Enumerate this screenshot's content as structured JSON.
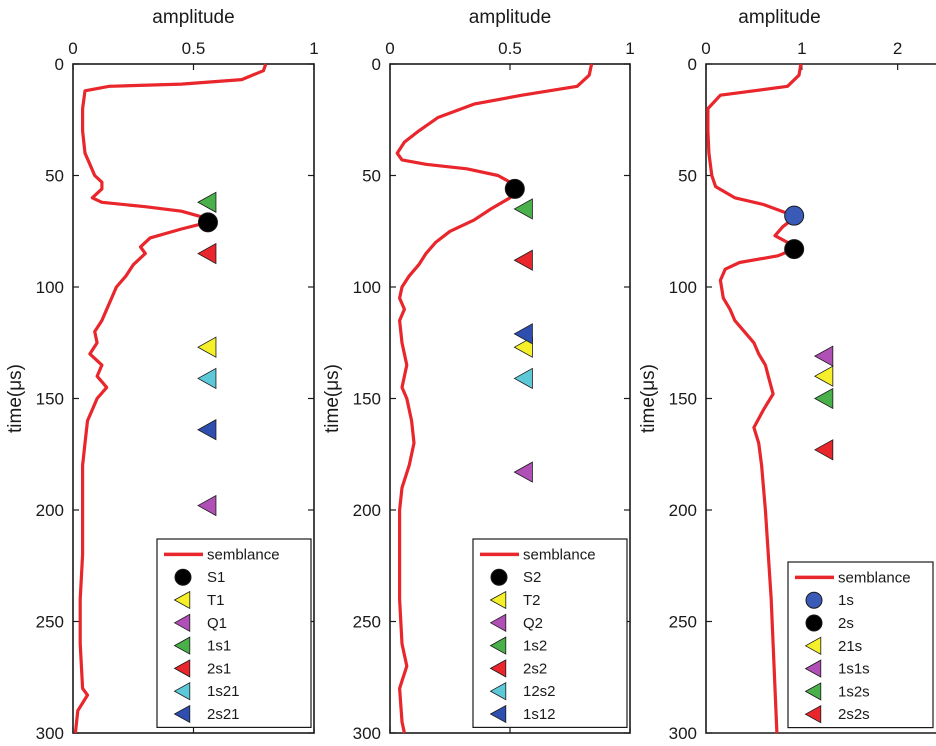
{
  "colors": {
    "curve": "#e8262b",
    "black": "#000000",
    "blue_circle": "#3a5ab8",
    "yellow": "#f5f02a",
    "magenta": "#b04fb5",
    "green": "#4ab04a",
    "red": "#e8262b",
    "cyan": "#5cc8d8",
    "blue": "#2f4fb0"
  },
  "chart_data": [
    {
      "type": "line",
      "xlabel": "amplitude",
      "ylabel": "time(μs)",
      "xlim": [
        0,
        1
      ],
      "ylim": [
        0,
        300
      ],
      "y_reversed": true,
      "x_axis_position": "top",
      "xticks": [
        "0",
        "0.5",
        "1"
      ],
      "yticks": [
        "0",
        "50",
        "100",
        "150",
        "200",
        "250",
        "300"
      ],
      "legend_position": "bottom-right",
      "curve": {
        "name": "semblance",
        "points": [
          [
            0.8,
            0
          ],
          [
            0.79,
            3
          ],
          [
            0.7,
            7
          ],
          [
            0.45,
            9
          ],
          [
            0.15,
            10
          ],
          [
            0.05,
            12
          ],
          [
            0.04,
            20
          ],
          [
            0.04,
            30
          ],
          [
            0.05,
            40
          ],
          [
            0.07,
            45
          ],
          [
            0.09,
            50
          ],
          [
            0.12,
            53
          ],
          [
            0.12,
            56
          ],
          [
            0.08,
            60
          ],
          [
            0.12,
            62
          ],
          [
            0.3,
            64
          ],
          [
            0.45,
            66
          ],
          [
            0.55,
            69
          ],
          [
            0.56,
            71
          ],
          [
            0.45,
            74
          ],
          [
            0.32,
            78
          ],
          [
            0.28,
            82
          ],
          [
            0.3,
            85
          ],
          [
            0.25,
            90
          ],
          [
            0.22,
            95
          ],
          [
            0.18,
            100
          ],
          [
            0.16,
            105
          ],
          [
            0.14,
            110
          ],
          [
            0.12,
            115
          ],
          [
            0.09,
            120
          ],
          [
            0.1,
            125
          ],
          [
            0.07,
            130
          ],
          [
            0.12,
            135
          ],
          [
            0.1,
            140
          ],
          [
            0.14,
            145
          ],
          [
            0.1,
            150
          ],
          [
            0.08,
            155
          ],
          [
            0.06,
            160
          ],
          [
            0.05,
            170
          ],
          [
            0.04,
            180
          ],
          [
            0.04,
            200
          ],
          [
            0.04,
            220
          ],
          [
            0.03,
            240
          ],
          [
            0.03,
            260
          ],
          [
            0.04,
            280
          ],
          [
            0.06,
            283
          ],
          [
            0.02,
            290
          ],
          [
            0.01,
            300
          ]
        ]
      },
      "markers": [
        {
          "name": "S1",
          "shape": "circle",
          "color": "#000000",
          "x": 0.56,
          "y": 71
        },
        {
          "name": "T1",
          "shape": "triangle",
          "color": "#f5f02a",
          "x": 0.56,
          "y": 127
        },
        {
          "name": "Q1",
          "shape": "triangle",
          "color": "#b04fb5",
          "x": 0.56,
          "y": 198
        },
        {
          "name": "1s1",
          "shape": "triangle",
          "color": "#4ab04a",
          "x": 0.56,
          "y": 62
        },
        {
          "name": "2s1",
          "shape": "triangle",
          "color": "#e8262b",
          "x": 0.56,
          "y": 85
        },
        {
          "name": "1s21",
          "shape": "triangle",
          "color": "#5cc8d8",
          "x": 0.56,
          "y": 141
        },
        {
          "name": "2s21",
          "shape": "triangle",
          "color": "#2f4fb0",
          "x": 0.56,
          "y": 164
        }
      ],
      "legend": [
        {
          "label": "semblance",
          "kind": "line",
          "color": "#e8262b"
        },
        {
          "label": "S1",
          "kind": "circle",
          "color": "#000000"
        },
        {
          "label": "T1",
          "kind": "triangle",
          "color": "#f5f02a"
        },
        {
          "label": "Q1",
          "kind": "triangle",
          "color": "#b04fb5"
        },
        {
          "label": "1s1",
          "kind": "triangle",
          "color": "#4ab04a"
        },
        {
          "label": "2s1",
          "kind": "triangle",
          "color": "#e8262b"
        },
        {
          "label": "1s21",
          "kind": "triangle",
          "color": "#5cc8d8"
        },
        {
          "label": "2s21",
          "kind": "triangle",
          "color": "#2f4fb0"
        }
      ]
    },
    {
      "type": "line",
      "xlabel": "amplitude",
      "ylabel": "time(μs)",
      "xlim": [
        0,
        1
      ],
      "ylim": [
        0,
        300
      ],
      "y_reversed": true,
      "x_axis_position": "top",
      "xticks": [
        "0",
        "0.5",
        "1"
      ],
      "yticks": [
        "0",
        "50",
        "100",
        "150",
        "200",
        "250",
        "300"
      ],
      "legend_position": "bottom-right",
      "curve": {
        "name": "semblance",
        "points": [
          [
            0.84,
            0
          ],
          [
            0.83,
            5
          ],
          [
            0.78,
            10
          ],
          [
            0.55,
            14
          ],
          [
            0.35,
            18
          ],
          [
            0.2,
            24
          ],
          [
            0.12,
            30
          ],
          [
            0.06,
            35
          ],
          [
            0.03,
            40
          ],
          [
            0.05,
            43
          ],
          [
            0.15,
            45
          ],
          [
            0.32,
            47
          ],
          [
            0.45,
            50
          ],
          [
            0.5,
            53
          ],
          [
            0.52,
            56
          ],
          [
            0.5,
            60
          ],
          [
            0.42,
            65
          ],
          [
            0.35,
            70
          ],
          [
            0.25,
            75
          ],
          [
            0.19,
            80
          ],
          [
            0.15,
            85
          ],
          [
            0.12,
            90
          ],
          [
            0.08,
            95
          ],
          [
            0.05,
            100
          ],
          [
            0.04,
            105
          ],
          [
            0.06,
            110
          ],
          [
            0.04,
            115
          ],
          [
            0.05,
            125
          ],
          [
            0.07,
            135
          ],
          [
            0.05,
            145
          ],
          [
            0.07,
            150
          ],
          [
            0.09,
            160
          ],
          [
            0.1,
            170
          ],
          [
            0.08,
            180
          ],
          [
            0.05,
            190
          ],
          [
            0.04,
            200
          ],
          [
            0.04,
            220
          ],
          [
            0.04,
            240
          ],
          [
            0.05,
            260
          ],
          [
            0.07,
            270
          ],
          [
            0.04,
            280
          ],
          [
            0.05,
            295
          ],
          [
            0.06,
            300
          ]
        ]
      },
      "markers": [
        {
          "name": "S2",
          "shape": "circle",
          "color": "#000000",
          "x": 0.52,
          "y": 56
        },
        {
          "name": "T2",
          "shape": "triangle",
          "color": "#f5f02a",
          "x": 0.56,
          "y": 127
        },
        {
          "name": "Q2",
          "shape": "triangle",
          "color": "#b04fb5",
          "x": 0.56,
          "y": 183
        },
        {
          "name": "1s2",
          "shape": "triangle",
          "color": "#4ab04a",
          "x": 0.56,
          "y": 65
        },
        {
          "name": "2s2",
          "shape": "triangle",
          "color": "#e8262b",
          "x": 0.56,
          "y": 88
        },
        {
          "name": "12s2",
          "shape": "triangle",
          "color": "#5cc8d8",
          "x": 0.56,
          "y": 141
        },
        {
          "name": "1s12",
          "shape": "triangle",
          "color": "#2f4fb0",
          "x": 0.56,
          "y": 121
        }
      ],
      "legend": [
        {
          "label": "semblance",
          "kind": "line",
          "color": "#e8262b"
        },
        {
          "label": "S2",
          "kind": "circle",
          "color": "#000000"
        },
        {
          "label": "T2",
          "kind": "triangle",
          "color": "#f5f02a"
        },
        {
          "label": "Q2",
          "kind": "triangle",
          "color": "#b04fb5"
        },
        {
          "label": "1s2",
          "kind": "triangle",
          "color": "#4ab04a"
        },
        {
          "label": "2s2",
          "kind": "triangle",
          "color": "#e8262b"
        },
        {
          "label": "12s2",
          "kind": "triangle",
          "color": "#5cc8d8"
        },
        {
          "label": "1s12",
          "kind": "triangle",
          "color": "#2f4fb0"
        }
      ]
    },
    {
      "type": "line",
      "xlabel": "amplitude",
      "ylabel": "time(μs)",
      "xlim": [
        0,
        2.4
      ],
      "ylim": [
        0,
        300
      ],
      "y_reversed": true,
      "x_axis_position": "top",
      "xticks": [
        "0",
        "1",
        "2"
      ],
      "xtick_values": [
        0,
        1,
        2
      ],
      "yticks": [
        "0",
        "50",
        "100",
        "150",
        "200",
        "250",
        "300"
      ],
      "legend_position": "bottom-right",
      "curve": {
        "name": "semblance",
        "points": [
          [
            0.99,
            0
          ],
          [
            0.97,
            5
          ],
          [
            0.85,
            10
          ],
          [
            0.5,
            12
          ],
          [
            0.15,
            14
          ],
          [
            0.02,
            20
          ],
          [
            0.02,
            30
          ],
          [
            0.03,
            40
          ],
          [
            0.06,
            50
          ],
          [
            0.1,
            55
          ],
          [
            0.3,
            60
          ],
          [
            0.6,
            63
          ],
          [
            0.85,
            67
          ],
          [
            0.92,
            69
          ],
          [
            0.8,
            73
          ],
          [
            0.72,
            77
          ],
          [
            0.85,
            80
          ],
          [
            0.92,
            83
          ],
          [
            0.75,
            86
          ],
          [
            0.35,
            89
          ],
          [
            0.2,
            92
          ],
          [
            0.15,
            97
          ],
          [
            0.18,
            105
          ],
          [
            0.25,
            110
          ],
          [
            0.3,
            115
          ],
          [
            0.4,
            120
          ],
          [
            0.5,
            125
          ],
          [
            0.55,
            130
          ],
          [
            0.62,
            135
          ],
          [
            0.65,
            140
          ],
          [
            0.7,
            148
          ],
          [
            0.6,
            155
          ],
          [
            0.5,
            163
          ],
          [
            0.55,
            170
          ],
          [
            0.58,
            180
          ],
          [
            0.6,
            190
          ],
          [
            0.62,
            200
          ],
          [
            0.65,
            220
          ],
          [
            0.68,
            240
          ],
          [
            0.7,
            260
          ],
          [
            0.72,
            280
          ],
          [
            0.74,
            300
          ]
        ]
      },
      "markers": [
        {
          "name": "1s",
          "shape": "circle",
          "color": "#3a5ab8",
          "x": 0.92,
          "y": 68
        },
        {
          "name": "2s",
          "shape": "circle",
          "color": "#000000",
          "x": 0.92,
          "y": 83
        },
        {
          "name": "21s",
          "shape": "triangle",
          "color": "#f5f02a",
          "x": 1.24,
          "y": 140
        },
        {
          "name": "1s1s",
          "shape": "triangle",
          "color": "#b04fb5",
          "x": 1.24,
          "y": 131
        },
        {
          "name": "1s2s",
          "shape": "triangle",
          "color": "#4ab04a",
          "x": 1.24,
          "y": 150
        },
        {
          "name": "2s2s",
          "shape": "triangle",
          "color": "#e8262b",
          "x": 1.24,
          "y": 173
        }
      ],
      "legend": [
        {
          "label": "semblance",
          "kind": "line",
          "color": "#e8262b"
        },
        {
          "label": "1s",
          "kind": "circle",
          "color": "#3a5ab8"
        },
        {
          "label": "2s",
          "kind": "circle",
          "color": "#000000"
        },
        {
          "label": "21s",
          "kind": "triangle",
          "color": "#f5f02a"
        },
        {
          "label": "1s1s",
          "kind": "triangle",
          "color": "#b04fb5"
        },
        {
          "label": "1s2s",
          "kind": "triangle",
          "color": "#4ab04a"
        },
        {
          "label": "2s2s",
          "kind": "triangle",
          "color": "#e8262b"
        }
      ]
    }
  ]
}
